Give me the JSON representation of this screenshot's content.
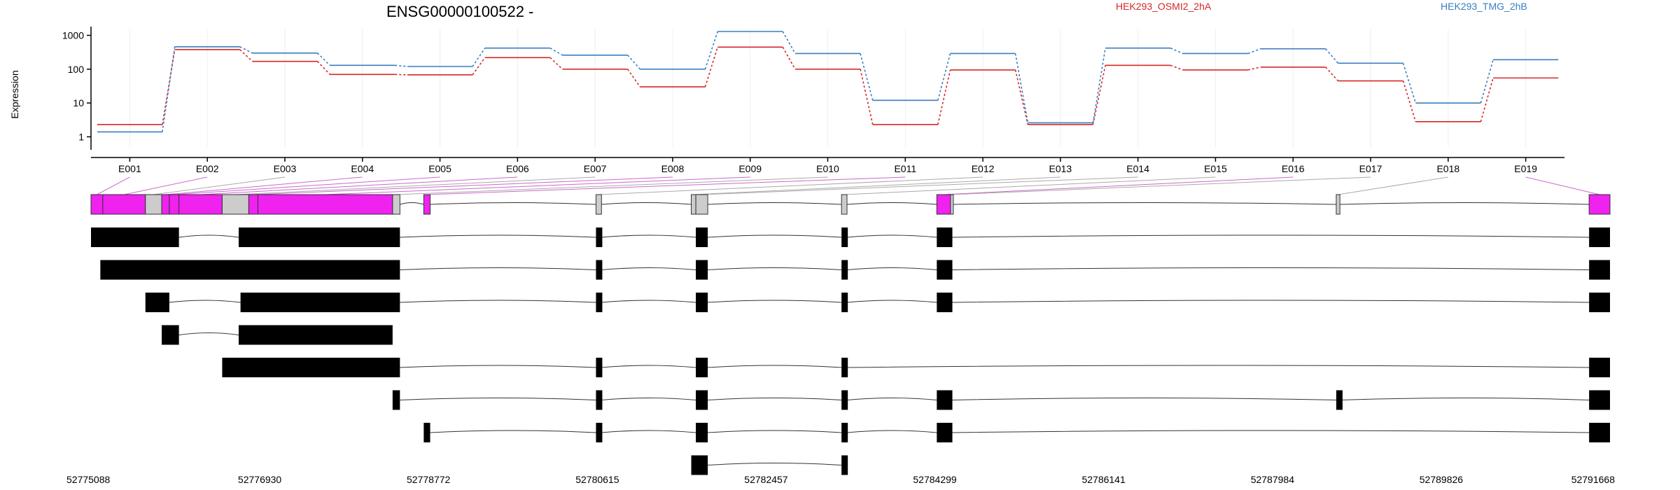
{
  "chart_data": {
    "type": "line",
    "title": "ENSG00000100522 -",
    "ylabel": "Expression",
    "y_scale": "log",
    "ylim": [
      0.5,
      1500
    ],
    "y_ticks": [
      "1",
      "10",
      "100",
      "1000"
    ],
    "legend_placement": "top",
    "categories": [
      "E001",
      "E002",
      "E003",
      "E004",
      "E005",
      "E006",
      "E007",
      "E008",
      "E009",
      "E010",
      "E011",
      "E012",
      "E013",
      "E014",
      "E015",
      "E016",
      "E017",
      "E018",
      "E019"
    ],
    "series": [
      {
        "name": "HEK293_OSMI2_2hA",
        "color": "#d62728",
        "values": [
          2.3,
          380,
          170,
          70,
          68,
          220,
          100,
          30,
          450,
          100,
          2.3,
          95,
          2.3,
          130,
          95,
          115,
          45,
          2.8,
          55
        ]
      },
      {
        "name": "HEK293_TMG_2hB",
        "color": "#3a7ebf",
        "values": [
          1.4,
          460,
          300,
          130,
          120,
          420,
          260,
          100,
          1300,
          290,
          12,
          290,
          2.6,
          420,
          290,
          400,
          150,
          10,
          190
        ]
      }
    ],
    "genomic_axis": {
      "min": 52775088,
      "max": 52791668,
      "tick_labels": [
        "52775088",
        "52776930",
        "52778772",
        "52780615",
        "52782457",
        "52784299",
        "52786141",
        "52787984",
        "52789826",
        "52791668"
      ]
    },
    "exon_bins": [
      [
        52775088,
        52775217,
        "m"
      ],
      [
        52775217,
        52775682,
        "m"
      ],
      [
        52775682,
        52775860,
        "g"
      ],
      [
        52775860,
        52775943,
        "m"
      ],
      [
        52775943,
        52776048,
        "m"
      ],
      [
        52776048,
        52776520,
        "m"
      ],
      [
        52776520,
        52776810,
        "g"
      ],
      [
        52776810,
        52776910,
        "m"
      ],
      [
        52776910,
        52778380,
        "m"
      ],
      [
        52778380,
        52778460,
        "g"
      ],
      [
        52778720,
        52778790,
        "m"
      ],
      [
        52780600,
        52780660,
        "g"
      ],
      [
        52781640,
        52781690,
        "g"
      ],
      [
        52781690,
        52781820,
        "g"
      ],
      [
        52783280,
        52783340,
        "g"
      ],
      [
        52784320,
        52784470,
        "m"
      ],
      [
        52784470,
        52784490,
        "g"
      ],
      [
        52788680,
        52788720,
        "g"
      ],
      [
        52791440,
        52791668,
        "m"
      ]
    ],
    "transcripts": [
      [
        [
          52775088,
          52776048
        ],
        [
          52776700,
          52778460
        ],
        [
          52780600,
          52780660
        ],
        [
          52781690,
          52781820
        ],
        [
          52783280,
          52783340
        ],
        [
          52784320,
          52784490
        ],
        [
          52791440,
          52791668
        ]
      ],
      [
        [
          52775190,
          52778460
        ],
        [
          52780600,
          52780660
        ],
        [
          52781690,
          52781820
        ],
        [
          52783280,
          52783340
        ],
        [
          52784320,
          52784490
        ],
        [
          52791440,
          52791668
        ]
      ],
      [
        [
          52775682,
          52775943
        ],
        [
          52776720,
          52778460
        ],
        [
          52780600,
          52780660
        ],
        [
          52781690,
          52781820
        ],
        [
          52783280,
          52783340
        ],
        [
          52784320,
          52784490
        ],
        [
          52791440,
          52791668
        ]
      ],
      [
        [
          52775860,
          52776048
        ],
        [
          52776700,
          52778380
        ]
      ],
      [
        [
          52776520,
          52778460
        ],
        [
          52780600,
          52780660
        ],
        [
          52781690,
          52781820
        ],
        [
          52783280,
          52783340
        ],
        [
          52791440,
          52791668
        ]
      ],
      [
        [
          52778380,
          52778460
        ],
        [
          52780600,
          52780660
        ],
        [
          52781690,
          52781820
        ],
        [
          52783280,
          52783340
        ],
        [
          52784320,
          52784490
        ],
        [
          52788680,
          52788720
        ],
        [
          52791440,
          52791668
        ]
      ],
      [
        [
          52778720,
          52778790
        ],
        [
          52780600,
          52780660
        ],
        [
          52781690,
          52781820
        ],
        [
          52783280,
          52783340
        ],
        [
          52784320,
          52784490
        ],
        [
          52791440,
          52791668
        ]
      ],
      [
        [
          52781640,
          52781820
        ],
        [
          52783280,
          52783340
        ]
      ]
    ]
  }
}
